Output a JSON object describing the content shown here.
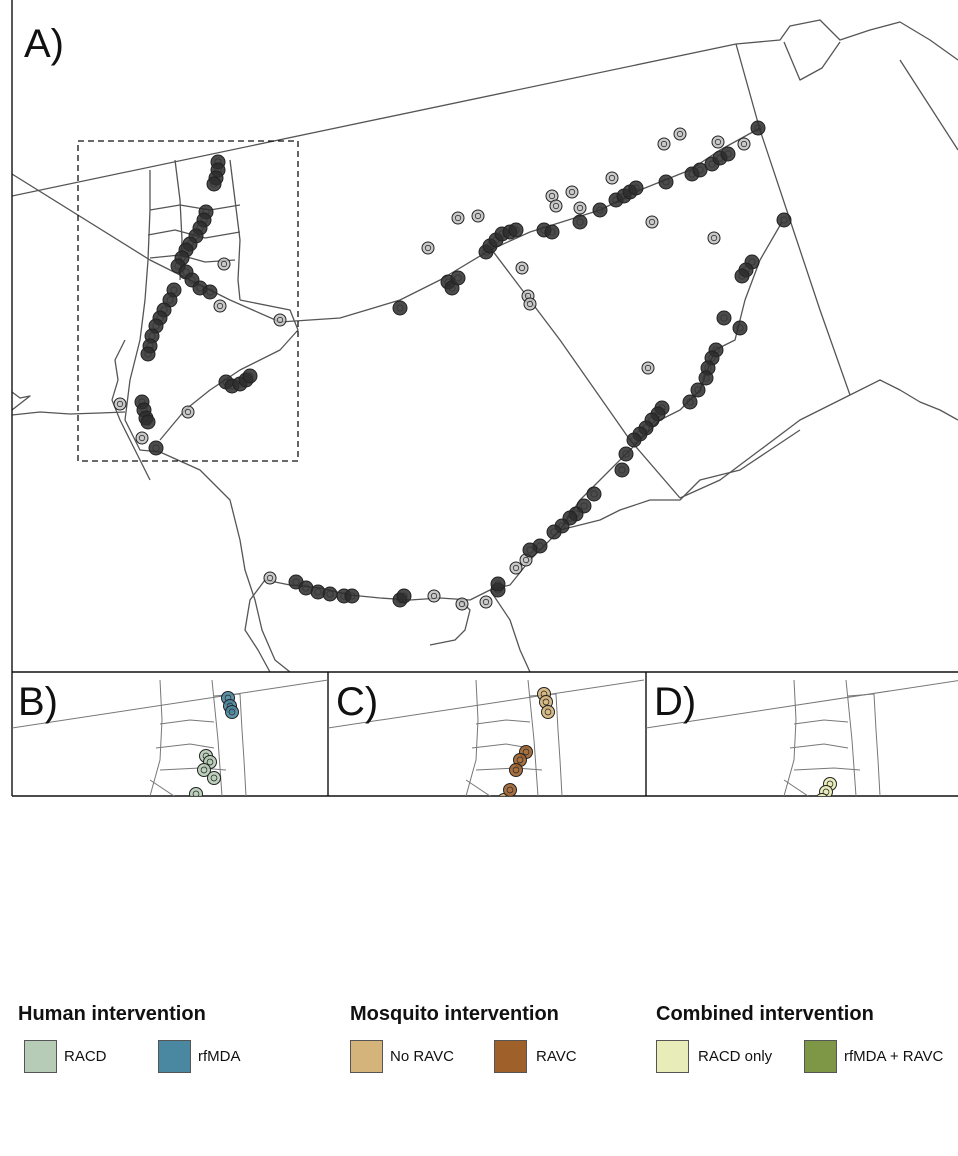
{
  "panels": {
    "a_label": "A)",
    "b_label": "B)",
    "c_label": "C)",
    "d_label": "D)"
  },
  "colors": {
    "boundary": "#555555",
    "point_main": "#2b2b2b",
    "racd": "#b6ccb6",
    "rfmda": "#4a87a0",
    "no_ravc": "#d4b47a",
    "ravc": "#a0602a",
    "racd_only": "#e8ecb8",
    "rfmda_ravc": "#7d9747"
  },
  "legend": {
    "human": {
      "title": "Human intervention",
      "items": [
        {
          "label": "RACD",
          "color": "#b6ccb6"
        },
        {
          "label": "rfMDA",
          "color": "#4a87a0"
        }
      ]
    },
    "mosquito": {
      "title": "Mosquito intervention",
      "items": [
        {
          "label": "No RAVC",
          "color": "#d4b47a"
        },
        {
          "label": "RAVC",
          "color": "#a0602a"
        }
      ]
    },
    "combined": {
      "title": "Combined intervention",
      "items": [
        {
          "label": "RACD only",
          "color": "#e8ecb8"
        },
        {
          "label": "rfMDA + RAVC",
          "color": "#7d9747"
        }
      ]
    }
  }
}
